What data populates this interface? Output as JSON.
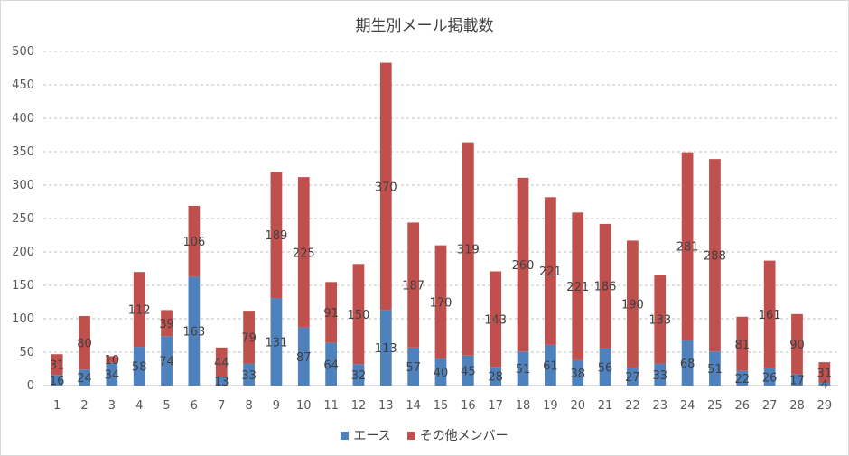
{
  "chart_data": {
    "type": "bar",
    "stacked": true,
    "title": "期生別メール掲載数",
    "categories": [
      "1",
      "2",
      "3",
      "4",
      "5",
      "6",
      "7",
      "8",
      "9",
      "10",
      "11",
      "12",
      "13",
      "14",
      "15",
      "16",
      "17",
      "18",
      "19",
      "20",
      "21",
      "22",
      "23",
      "24",
      "25",
      "26",
      "27",
      "28",
      "29"
    ],
    "series": [
      {
        "name": "エース",
        "color": "#4f81bd",
        "values": [
          16,
          24,
          34,
          58,
          74,
          163,
          13,
          33,
          131,
          87,
          64,
          32,
          113,
          57,
          40,
          45,
          28,
          51,
          61,
          38,
          56,
          27,
          33,
          68,
          51,
          22,
          26,
          17,
          4
        ]
      },
      {
        "name": "その他メンバー",
        "color": "#c0504d",
        "values": [
          31,
          80,
          10,
          112,
          39,
          106,
          44,
          79,
          189,
          225,
          91,
          150,
          370,
          187,
          170,
          319,
          143,
          260,
          221,
          221,
          186,
          190,
          133,
          281,
          288,
          81,
          161,
          90,
          31
        ]
      }
    ],
    "ylim": [
      0,
      500
    ],
    "yticks": [
      0,
      50,
      100,
      150,
      200,
      250,
      300,
      350,
      400,
      450,
      500
    ],
    "grid": true,
    "legend_position": "bottom",
    "data_labels": true
  }
}
